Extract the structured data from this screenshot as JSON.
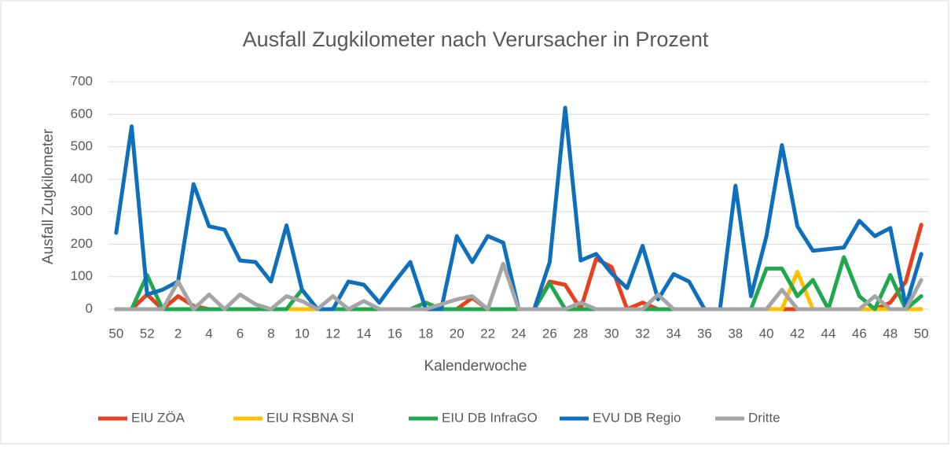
{
  "chart_data": {
    "type": "line",
    "title": "Ausfall Zugkilometer nach Verursacher in Prozent",
    "x_label": "Kalenderwoche",
    "y_label": "Ausfall Zugkilometer",
    "categories": [
      "50",
      null,
      "52",
      null,
      "2",
      null,
      "4",
      null,
      "6",
      null,
      "8",
      null,
      "10",
      null,
      "12",
      null,
      "14",
      null,
      "16",
      null,
      "18",
      null,
      "20",
      null,
      "22",
      null,
      "24",
      null,
      "26",
      null,
      "28",
      null,
      "30",
      null,
      "32",
      null,
      "34",
      null,
      "36",
      null,
      "38",
      null,
      "40",
      null,
      "42",
      null,
      "44",
      null,
      "46",
      null,
      "48",
      null,
      "50"
    ],
    "series": [
      {
        "name": "EIU ZÖA",
        "color": "#e8401c",
        "values": [
          0,
          0,
          45,
          0,
          40,
          10,
          0,
          0,
          0,
          0,
          0,
          0,
          0,
          0,
          0,
          0,
          0,
          0,
          0,
          0,
          0,
          0,
          0,
          35,
          0,
          0,
          0,
          0,
          85,
          75,
          0,
          155,
          130,
          0,
          20,
          0,
          0,
          0,
          0,
          0,
          0,
          0,
          0,
          0,
          0,
          0,
          0,
          0,
          0,
          0,
          20,
          85,
          260
        ]
      },
      {
        "name": "EIU RSBNA SI",
        "color": "#ffc000",
        "values": [
          0,
          0,
          0,
          0,
          0,
          0,
          0,
          0,
          0,
          0,
          0,
          0,
          0,
          0,
          0,
          0,
          0,
          0,
          0,
          0,
          0,
          0,
          0,
          0,
          0,
          0,
          0,
          0,
          0,
          0,
          0,
          0,
          0,
          0,
          0,
          0,
          0,
          0,
          0,
          0,
          0,
          0,
          0,
          0,
          115,
          0,
          0,
          0,
          0,
          0,
          0,
          0,
          0
        ]
      },
      {
        "name": "EIU DB InfraGO",
        "color": "#21a84f",
        "values": [
          0,
          0,
          105,
          0,
          0,
          0,
          0,
          0,
          0,
          0,
          0,
          0,
          60,
          0,
          0,
          0,
          0,
          0,
          0,
          0,
          20,
          0,
          0,
          0,
          0,
          0,
          0,
          0,
          80,
          0,
          0,
          0,
          0,
          0,
          0,
          0,
          0,
          0,
          0,
          0,
          0,
          0,
          125,
          125,
          40,
          90,
          0,
          160,
          40,
          0,
          105,
          0,
          40
        ]
      },
      {
        "name": "EVU DB Regio",
        "color": "#0e6fbd",
        "values": [
          235,
          563,
          45,
          60,
          85,
          385,
          255,
          245,
          150,
          145,
          85,
          258,
          60,
          0,
          0,
          85,
          75,
          20,
          85,
          145,
          0,
          0,
          225,
          145,
          225,
          205,
          0,
          0,
          145,
          620,
          150,
          170,
          110,
          65,
          195,
          30,
          108,
          85,
          0,
          0,
          380,
          40,
          225,
          505,
          255,
          180,
          185,
          190,
          272,
          225,
          250,
          10,
          170
        ]
      },
      {
        "name": "Dritte",
        "color": "#a5a5a5",
        "values": [
          0,
          0,
          0,
          0,
          85,
          0,
          45,
          0,
          45,
          15,
          0,
          40,
          25,
          0,
          40,
          0,
          25,
          0,
          0,
          0,
          0,
          15,
          30,
          40,
          0,
          140,
          0,
          0,
          0,
          0,
          20,
          0,
          0,
          0,
          0,
          45,
          0,
          0,
          0,
          0,
          0,
          0,
          0,
          60,
          0,
          0,
          0,
          0,
          0,
          40,
          0,
          0,
          90
        ]
      }
    ],
    "ylim": [
      0,
      700
    ],
    "yticks": [
      0,
      100,
      200,
      300,
      400,
      500,
      600,
      700
    ],
    "grid": true,
    "legend": "bottom"
  }
}
